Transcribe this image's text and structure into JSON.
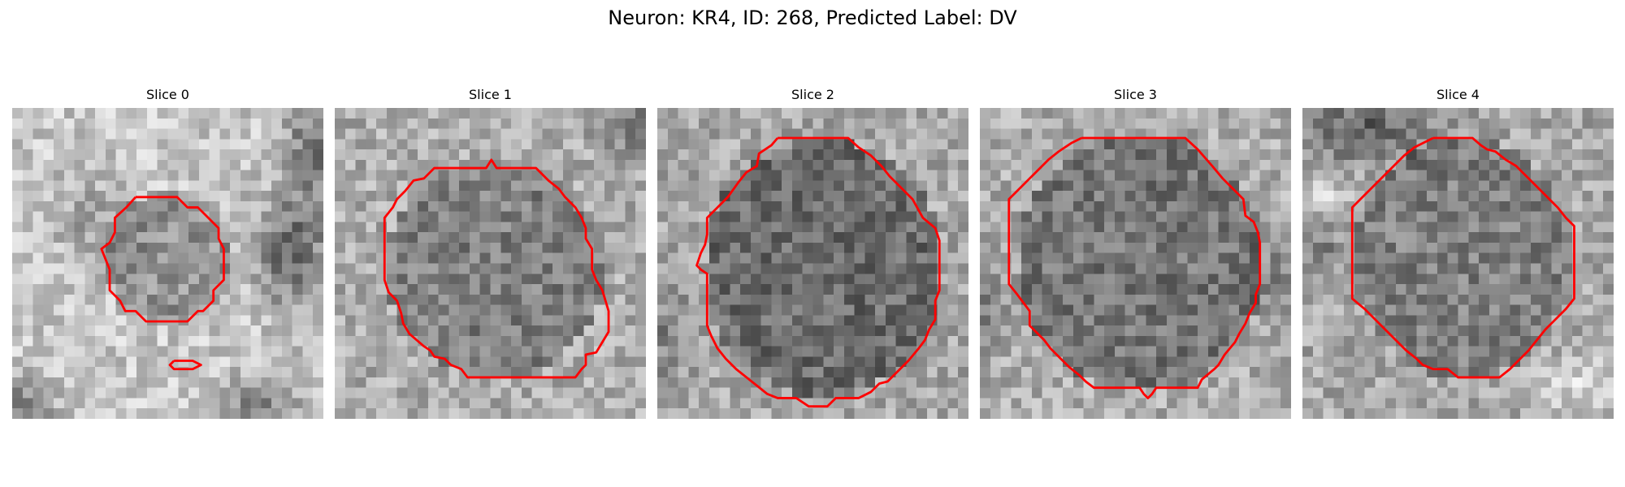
{
  "figure": {
    "title": "Neuron: KR4, ID: 268, Predicted Label: DV"
  },
  "panels": [
    {
      "title": "Slice 0"
    },
    {
      "title": "Slice 1"
    },
    {
      "title": "Slice 2"
    },
    {
      "title": "Slice 3"
    },
    {
      "title": "Slice 4"
    }
  ],
  "style": {
    "contour_color": "#ff0000"
  }
}
